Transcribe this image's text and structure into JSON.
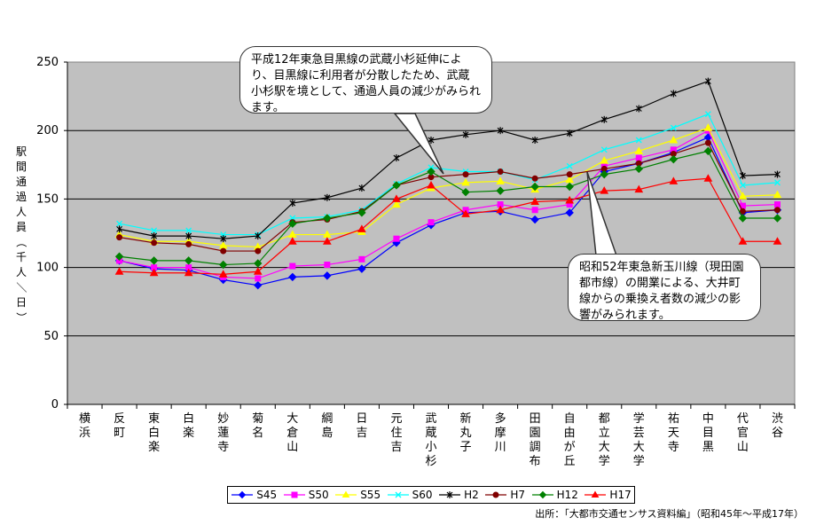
{
  "chart_data": {
    "type": "line",
    "ylabel": "駅間通過人員（千人／日）",
    "ylim": [
      0,
      250
    ],
    "yticks": [
      "0",
      "50",
      "100",
      "150",
      "200",
      "250"
    ],
    "grid": true,
    "legend_position": "bottom",
    "categories": [
      "横浜",
      "反町",
      "東白楽",
      "白楽",
      "妙蓮寺",
      "菊名",
      "大倉山",
      "綱島",
      "日吉",
      "元住吉",
      "武蔵小杉",
      "新丸子",
      "多摩川",
      "田園調布",
      "自由が丘",
      "都立大学",
      "学芸大学",
      "祐天寺",
      "中目黒",
      "代官山",
      "渋谷"
    ],
    "series": [
      {
        "name": "S45",
        "color": "#0000ff",
        "marker": "diamond",
        "values": [
          null,
          105,
          99,
          98,
          91,
          87,
          93,
          94,
          99,
          118,
          131,
          140,
          141,
          135,
          140,
          170,
          176,
          184,
          195,
          140,
          142
        ]
      },
      {
        "name": "S50",
        "color": "#ff00ff",
        "marker": "square",
        "values": [
          null,
          105,
          100,
          100,
          93,
          92,
          101,
          102,
          106,
          121,
          133,
          142,
          146,
          142,
          146,
          174,
          180,
          186,
          200,
          145,
          146
        ]
      },
      {
        "name": "S55",
        "color": "#ffff00",
        "marker": "triangle",
        "values": [
          null,
          124,
          119,
          119,
          116,
          115,
          124,
          124,
          126,
          146,
          158,
          162,
          163,
          157,
          164,
          178,
          185,
          193,
          202,
          152,
          153
        ]
      },
      {
        "name": "S60",
        "color": "#00ffff",
        "marker": "x",
        "values": [
          null,
          132,
          127,
          127,
          124,
          124,
          136,
          137,
          142,
          161,
          173,
          170,
          170,
          164,
          174,
          186,
          193,
          202,
          212,
          160,
          162
        ]
      },
      {
        "name": "H2",
        "color": "#000000",
        "marker": "star",
        "values": [
          null,
          128,
          123,
          123,
          121,
          123,
          147,
          151,
          158,
          180,
          193,
          197,
          200,
          193,
          198,
          208,
          216,
          227,
          236,
          167,
          168
        ]
      },
      {
        "name": "H7",
        "color": "#800000",
        "marker": "circle",
        "values": [
          null,
          122,
          118,
          117,
          112,
          112,
          133,
          135,
          141,
          160,
          166,
          168,
          170,
          165,
          168,
          172,
          176,
          183,
          191,
          141,
          142
        ]
      },
      {
        "name": "H12",
        "color": "#008000",
        "marker": "diamond",
        "values": [
          null,
          108,
          105,
          105,
          102,
          103,
          132,
          136,
          140,
          160,
          170,
          155,
          156,
          159,
          159,
          168,
          172,
          179,
          185,
          136,
          136
        ]
      },
      {
        "name": "H17",
        "color": "#ff0000",
        "marker": "triangle",
        "values": [
          null,
          97,
          96,
          96,
          95,
          97,
          119,
          119,
          128,
          150,
          160,
          139,
          142,
          148,
          149,
          156,
          157,
          163,
          165,
          119,
          119
        ]
      }
    ]
  },
  "callouts": {
    "callout1": "平成12年東急目黒線の武蔵小杉延伸により、目黒線に利用者が分散したため、武蔵小杉駅を境として、通過人員の減少がみられます。",
    "callout2": "昭和52年東急新玉川線（現田園都市線）の開業による、大井町線からの乗換え者数の減少の影響がみられます。"
  },
  "source": "出所：「大都市交通センサス資料編」（昭和45年～平成17年）"
}
